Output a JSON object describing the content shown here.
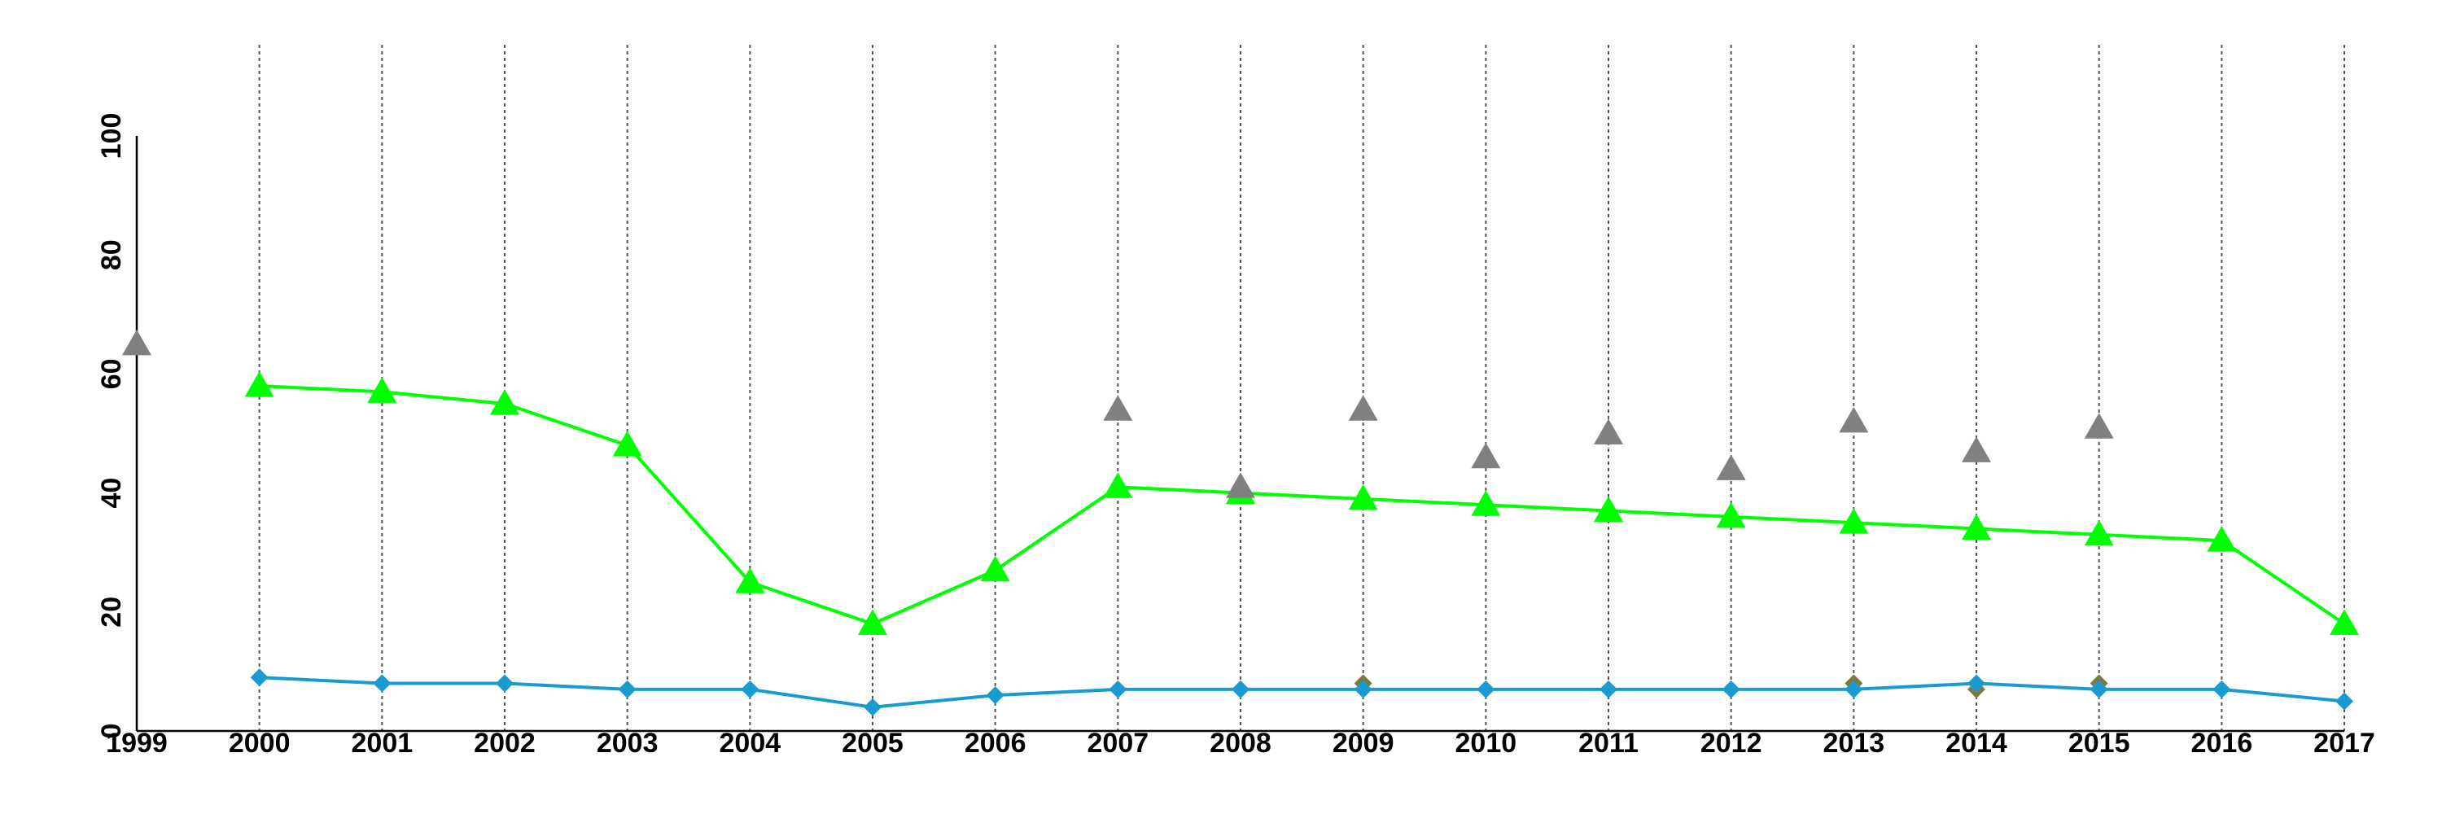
{
  "chart_data": {
    "type": "line",
    "x": [
      1999,
      2000,
      2001,
      2002,
      2003,
      2004,
      2005,
      2006,
      2007,
      2008,
      2009,
      2010,
      2011,
      2012,
      2013,
      2014,
      2015,
      2016,
      2017
    ],
    "xlim": [
      1999,
      2017
    ],
    "ylim": [
      0,
      100
    ],
    "yticks": [
      0,
      20,
      40,
      60,
      80,
      100
    ],
    "grid": "vertical-dotted",
    "title": "",
    "xlabel": "",
    "ylabel": "",
    "series": [
      {
        "marker": "triangle",
        "line": true,
        "color": "#00ff00",
        "values": [
          null,
          58,
          57,
          55,
          48,
          25,
          18,
          27,
          41,
          40,
          39,
          38,
          37,
          36,
          35,
          34,
          33,
          32,
          18
        ]
      },
      {
        "marker": "triangle",
        "line": false,
        "color": "#808080",
        "values": [
          65,
          null,
          null,
          null,
          null,
          null,
          null,
          null,
          54,
          41,
          54,
          46,
          50,
          44,
          52,
          47,
          51,
          null,
          null
        ]
      },
      {
        "marker": "diamond",
        "line": false,
        "color": "#7a7a40",
        "values": [
          null,
          null,
          null,
          null,
          null,
          null,
          null,
          null,
          null,
          null,
          8,
          null,
          null,
          null,
          8,
          7,
          8,
          null,
          null
        ]
      },
      {
        "marker": "diamond",
        "line": true,
        "color": "#1a9bd0",
        "values": [
          null,
          9,
          8,
          8,
          7,
          7,
          4,
          6,
          7,
          7,
          7,
          7,
          7,
          7,
          7,
          8,
          7,
          7,
          5
        ]
      }
    ]
  }
}
